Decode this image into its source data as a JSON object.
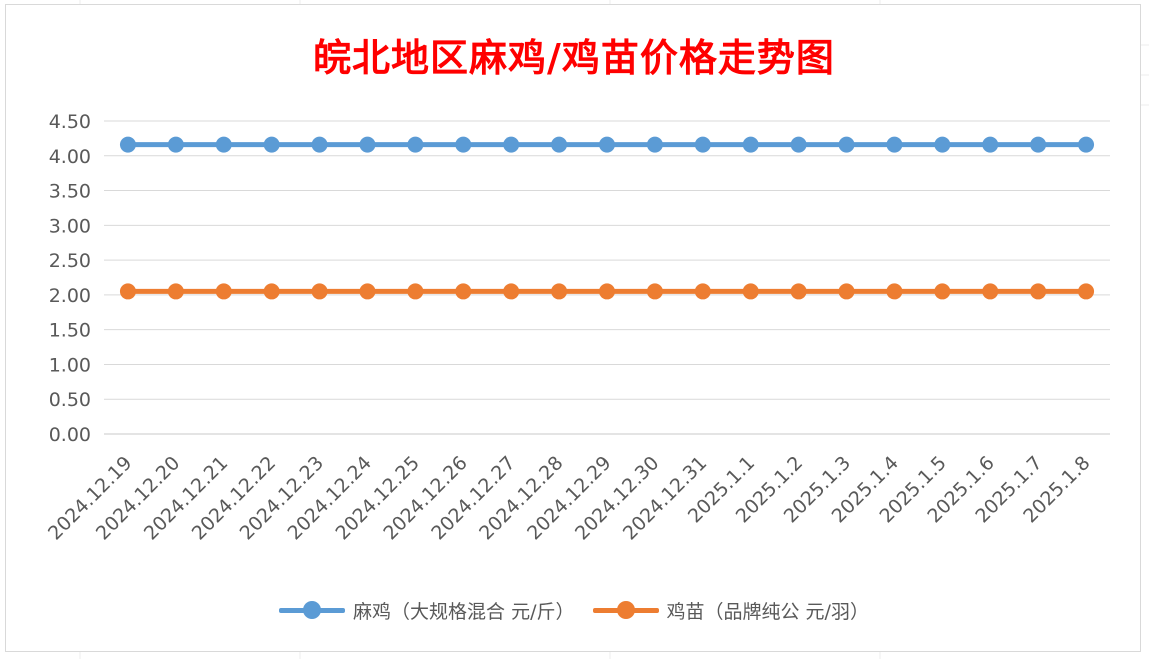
{
  "chart_data": {
    "type": "line",
    "title": "皖北地区麻鸡/鸡苗价格走势图",
    "categories": [
      "2024.12.19",
      "2024.12.20",
      "2024.12.21",
      "2024.12.22",
      "2024.12.23",
      "2024.12.24",
      "2024.12.25",
      "2024.12.26",
      "2024.12.27",
      "2024.12.28",
      "2024.12.29",
      "2024.12.30",
      "2024.12.31",
      "2025.1.1",
      "2025.1.2",
      "2025.1.3",
      "2025.1.4",
      "2025.1.5",
      "2025.1.6",
      "2025.1.7",
      "2025.1.8"
    ],
    "series": [
      {
        "name": "麻鸡（大规格混合 元/斤）",
        "color": "#5b9bd5",
        "values": [
          4.16,
          4.16,
          4.16,
          4.16,
          4.16,
          4.16,
          4.16,
          4.16,
          4.16,
          4.16,
          4.16,
          4.16,
          4.16,
          4.16,
          4.16,
          4.16,
          4.16,
          4.16,
          4.16,
          4.16,
          4.16
        ]
      },
      {
        "name": "鸡苗（品牌纯公 元/羽）",
        "color": "#ed7d31",
        "values": [
          2.05,
          2.05,
          2.05,
          2.05,
          2.05,
          2.05,
          2.05,
          2.05,
          2.05,
          2.05,
          2.05,
          2.05,
          2.05,
          2.05,
          2.05,
          2.05,
          2.05,
          2.05,
          2.05,
          2.05,
          2.05
        ]
      }
    ],
    "ylim": [
      0,
      4.5
    ],
    "yticks": [
      "0.00",
      "0.50",
      "1.00",
      "1.50",
      "2.00",
      "2.50",
      "3.00",
      "3.50",
      "4.00",
      "4.50"
    ],
    "grid": true,
    "legend": "bottom"
  }
}
